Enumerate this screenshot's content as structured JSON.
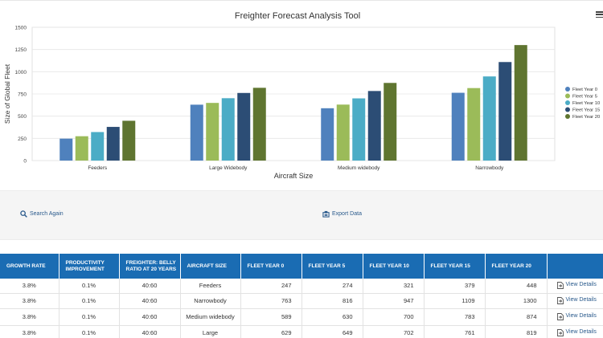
{
  "chart": {
    "menu_icon": "hamburger-menu-icon"
  },
  "chart_data": {
    "type": "bar",
    "title": "Freighter Forecast Analysis Tool",
    "xlabel": "Aircraft Size",
    "ylabel": "Size of Global Fleet",
    "ylim": [
      0,
      1500
    ],
    "yticks": [
      "0",
      "250",
      "500",
      "750",
      "1000",
      "1250",
      "1500"
    ],
    "grid": true,
    "legend_position": "right",
    "categories": [
      "Feeders",
      "Large Widebody",
      "Medium widebody",
      "Narrowbody"
    ],
    "series": [
      {
        "name": "Fleet Year 0",
        "color": "#4f81bd",
        "values": [
          247,
          629,
          589,
          763
        ]
      },
      {
        "name": "Fleet Year 5",
        "color": "#9bbb59",
        "values": [
          274,
          649,
          630,
          816
        ]
      },
      {
        "name": "Fleet Year 10",
        "color": "#4bacc6",
        "values": [
          321,
          702,
          700,
          947
        ]
      },
      {
        "name": "Fleet Year 15",
        "color": "#2c4d75",
        "values": [
          379,
          761,
          783,
          1109
        ]
      },
      {
        "name": "Fleet Year 20",
        "color": "#5f7530",
        "values": [
          448,
          819,
          874,
          1300
        ]
      }
    ]
  },
  "actions": {
    "search_again": {
      "label": "Search Again",
      "icon": "search-icon"
    },
    "export_data": {
      "label": "Export Data",
      "icon": "export-icon"
    }
  },
  "table": {
    "headers": [
      "Growth Rate",
      "Productivity Improvement",
      "Freighter: Belly Ratio at 20 Years",
      "Aircraft Size",
      "Fleet Year 0",
      "Fleet Year 5",
      "Fleet Year 10",
      "Fleet Year 15",
      "Fleet Year 20",
      ""
    ],
    "view_details_label": "View Details",
    "rows": [
      [
        "3.8%",
        "0.1%",
        "40:60",
        "Feeders",
        "247",
        "274",
        "321",
        "379",
        "448"
      ],
      [
        "3.8%",
        "0.1%",
        "40:60",
        "Narrowbody",
        "763",
        "816",
        "947",
        "1109",
        "1300"
      ],
      [
        "3.8%",
        "0.1%",
        "40:60",
        "Medium widebody",
        "589",
        "630",
        "700",
        "783",
        "874"
      ],
      [
        "3.8%",
        "0.1%",
        "40:60",
        "Large",
        "629",
        "649",
        "702",
        "761",
        "819"
      ]
    ]
  }
}
